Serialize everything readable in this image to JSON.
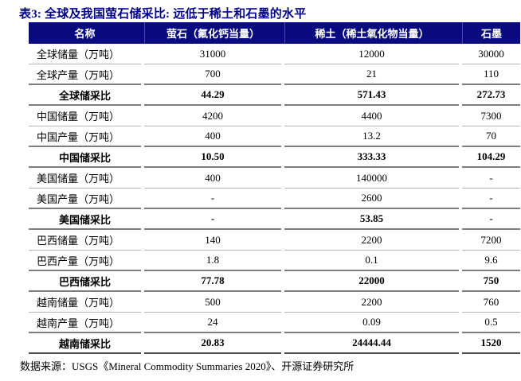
{
  "title": "表3:  全球及我国萤石储采比:  远低于稀土和石墨的水平",
  "source": "数据来源：USGS《Mineral Commodity Summaries 2020》、开源证券研究所",
  "colors": {
    "header_bg": "#0a0a80",
    "title_text": "#00008b",
    "header_text": "#ffffff",
    "light_rule": "#b3b3b3",
    "dark_rule": "#7d7d7d"
  },
  "table": {
    "headers": [
      "名称",
      "萤石（氟化钙当量）",
      "稀土（稀土氧化物当量）",
      "石墨"
    ],
    "rows": [
      {
        "label": "全球储量（万吨）",
        "values": [
          "31000",
          "12000",
          "30000"
        ]
      },
      {
        "label": "全球产量（万吨）",
        "values": [
          "700",
          "21",
          "110"
        ]
      },
      {
        "label": "全球储采比",
        "values": [
          "44.29",
          "571.43",
          "272.73"
        ]
      },
      {
        "label": "中国储量（万吨）",
        "values": [
          "4200",
          "4400",
          "7300"
        ]
      },
      {
        "label": "中国产量（万吨）",
        "values": [
          "400",
          "13.2",
          "70"
        ]
      },
      {
        "label": "中国储采比",
        "values": [
          "10.50",
          "333.33",
          "104.29"
        ]
      },
      {
        "label": "美国储量（万吨）",
        "values": [
          "400",
          "140000",
          "-"
        ]
      },
      {
        "label": "美国产量（万吨）",
        "values": [
          "-",
          "2600",
          "-"
        ]
      },
      {
        "label": "美国储采比",
        "values": [
          "-",
          "53.85",
          "-"
        ]
      },
      {
        "label": "巴西储量（万吨）",
        "values": [
          "140",
          "2200",
          "7200"
        ]
      },
      {
        "label": "巴西产量（万吨）",
        "values": [
          "1.8",
          "0.1",
          "9.6"
        ]
      },
      {
        "label": "巴西储采比",
        "values": [
          "77.78",
          "22000",
          "750"
        ]
      },
      {
        "label": "越南储量（万吨）",
        "values": [
          "500",
          "2200",
          "760"
        ]
      },
      {
        "label": "越南产量（万吨）",
        "values": [
          "24",
          "0.09",
          "0.5"
        ]
      },
      {
        "label": "越南储采比",
        "values": [
          "20.83",
          "24444.44",
          "1520"
        ]
      }
    ]
  }
}
